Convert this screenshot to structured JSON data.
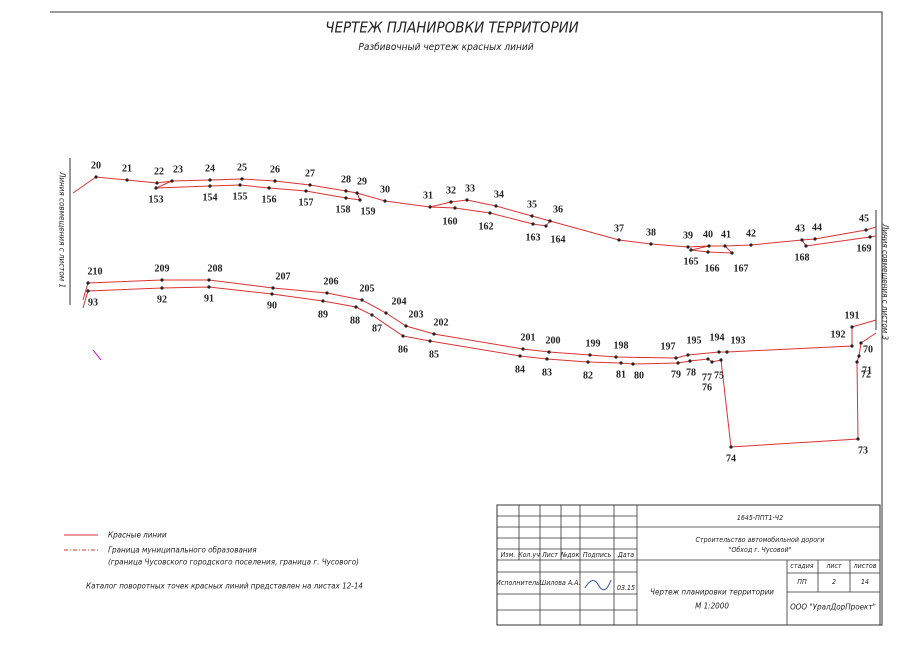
{
  "title": "ЧЕРТЕЖ ПЛАНИРОВКИ ТЕРРИТОРИИ",
  "subtitle": "Разбивочный чертеж красных линий",
  "match_lines": [
    "Линия совмещения с листом 1",
    "Линия совмещения с листом 3"
  ],
  "points": [
    "20",
    "21",
    "22",
    "23",
    "24",
    "25",
    "26",
    "27",
    "28",
    "29",
    "30",
    "31",
    "32",
    "33",
    "34",
    "35",
    "36",
    "37",
    "38",
    "39",
    "40",
    "41",
    "42",
    "43",
    "44",
    "45",
    "153",
    "154",
    "155",
    "156",
    "157",
    "158",
    "159",
    "160",
    "162",
    "163",
    "164",
    "165",
    "166",
    "167",
    "168",
    "169",
    "210",
    "209",
    "208",
    "207",
    "206",
    "205",
    "204",
    "203",
    "202",
    "201",
    "200",
    "199",
    "198",
    "197",
    "195",
    "194",
    "193",
    "192",
    "191",
    "93",
    "92",
    "91",
    "90",
    "89",
    "88",
    "87",
    "86",
    "85",
    "84",
    "83",
    "82",
    "81",
    "80",
    "79",
    "78",
    "77",
    "76",
    "75",
    "74",
    "73",
    "72",
    "71",
    "70"
  ],
  "legend": {
    "red_lines": "Красные линии",
    "boundary": "Граница муниципального образования",
    "boundary_note": "(граница Чусовского городского поселения, граница г. Чусового)",
    "catalog": "Каталог поворотных точек красных линий представлен на листах 12-14"
  },
  "title_block": {
    "code": "1645-ППТ1-Ч2",
    "project": [
      "Строительство автомобильной дороги",
      "\"Обход г. Чусовой\""
    ],
    "headers": [
      "Изм.",
      "Кол.уч",
      "Лист",
      "№док",
      "Подпись",
      "Дата"
    ],
    "executor": "Исполнитель",
    "executor_name": "Шилова А.А.",
    "date": "03.15",
    "sheet_title": "Чертеж планировки территории",
    "scale": "М 1:2000",
    "stage_header": "стадия",
    "sheet_header": "лист",
    "sheets_header": "листов",
    "stage": "ПП",
    "sheet": "2",
    "sheets": "14",
    "company": "ООО \"УралДорПроект\""
  }
}
